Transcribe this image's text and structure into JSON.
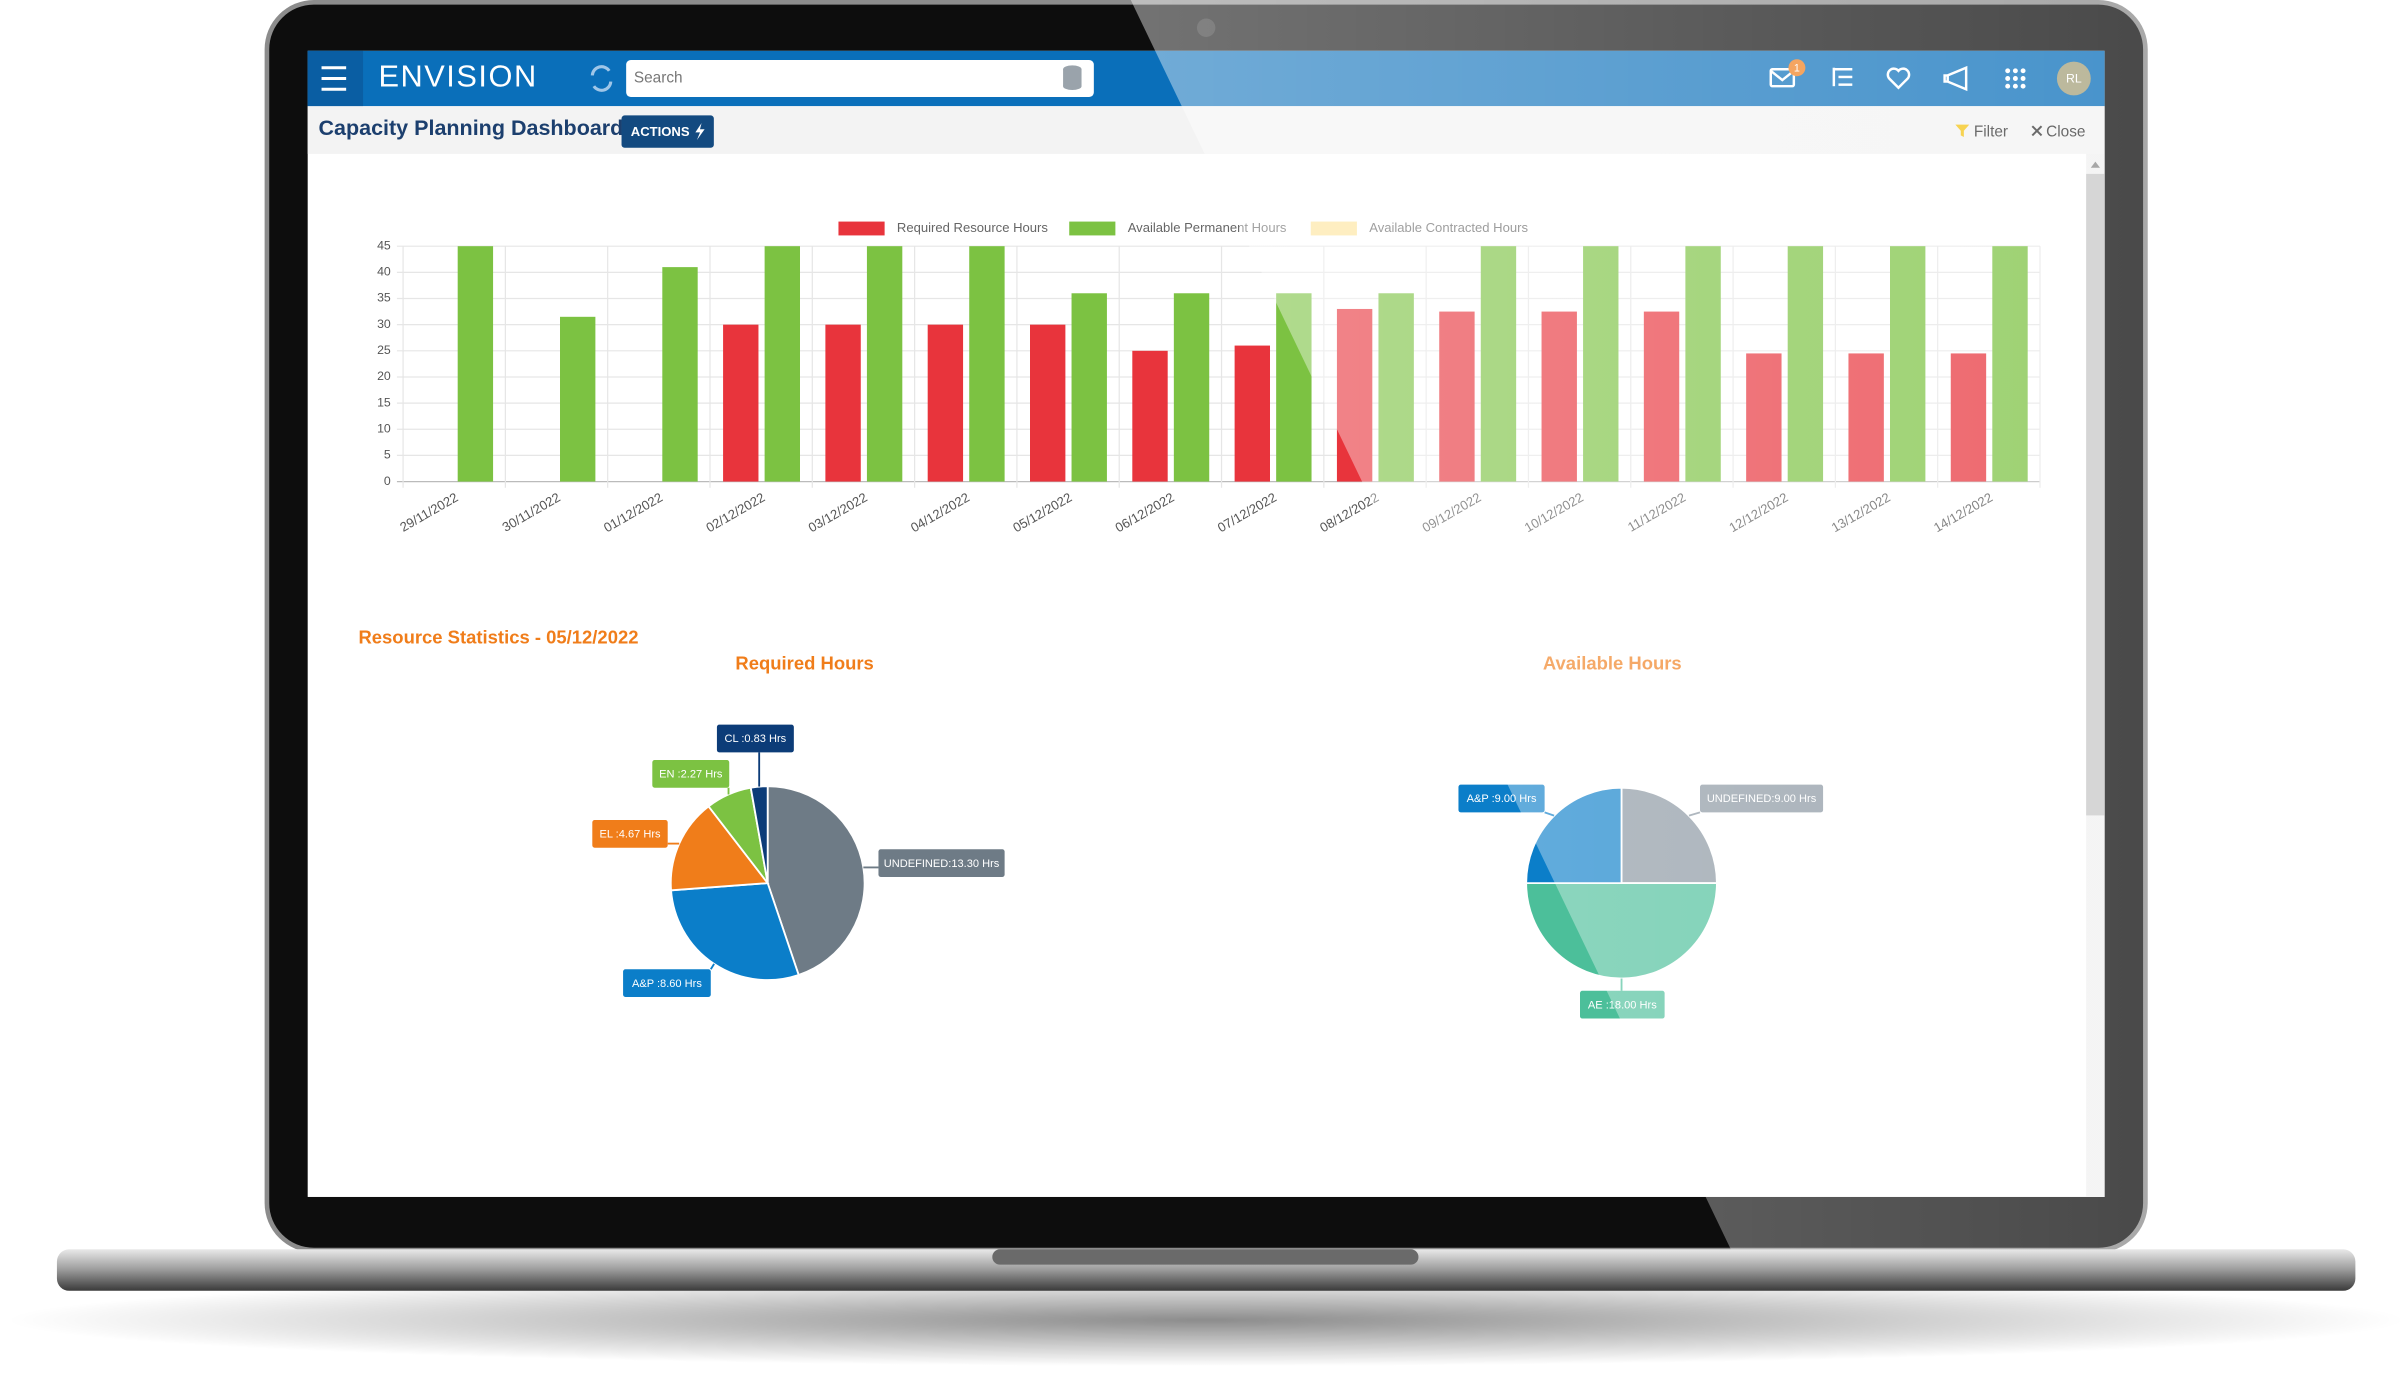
{
  "header": {
    "app_name": "ENVISION",
    "search_placeholder": "Search",
    "notification_count": 1,
    "user_initials": "RL"
  },
  "toolbar": {
    "title": "Capacity Planning Dashboard",
    "actions_button": "ACTIONS",
    "filter": "Filter",
    "close": "Close"
  },
  "section_title": "Resource Statistics - 05/12/2022",
  "chart_data": [
    {
      "type": "bar",
      "categories": [
        "29/11/2022",
        "30/11/2022",
        "01/12/2022",
        "02/12/2022",
        "03/12/2022",
        "04/12/2022",
        "05/12/2022",
        "06/12/2022",
        "07/12/2022",
        "08/12/2022",
        "09/12/2022",
        "10/12/2022",
        "11/12/2022",
        "12/12/2022",
        "13/12/2022",
        "14/12/2022"
      ],
      "series": [
        {
          "name": "Required Resource Hours",
          "color": "#e8343c",
          "stack": "required",
          "values": [
            0,
            0,
            0,
            30,
            30,
            30,
            30,
            25,
            26,
            33,
            32.5,
            32.5,
            32.5,
            24.5,
            24.5,
            24.5
          ]
        },
        {
          "name": "Available Permanent Hours",
          "color": "#7cc242",
          "stack": "available",
          "values": [
            45,
            31.5,
            41,
            45,
            45,
            45,
            36,
            36,
            36,
            36,
            45,
            45,
            45,
            45,
            45,
            45
          ]
        },
        {
          "name": "Available Contracted Hours",
          "color": "#fde49a",
          "stack": "available",
          "values": [
            0,
            0,
            0,
            0,
            0,
            0,
            0,
            0,
            0,
            0,
            0,
            0,
            0,
            0,
            0,
            0
          ]
        }
      ],
      "ylim": [
        0,
        45
      ],
      "yticks": [
        0,
        5,
        10,
        15,
        20,
        25,
        30,
        35,
        40,
        45
      ],
      "grid": true,
      "legend": "top"
    },
    {
      "type": "pie",
      "title": "Required Hours",
      "values": [
        13.3,
        8.6,
        4.67,
        2.27,
        0.83
      ],
      "value_labels": [
        "UNDEFINED:13.30 Hrs",
        "A&P :8.60 Hrs",
        "EL :4.67 Hrs",
        "EN :2.27 Hrs",
        "CL :0.83 Hrs"
      ],
      "colors": [
        "#6e7b86",
        "#0b7ec9",
        "#f07d1a",
        "#7cc242",
        "#0c3c78"
      ]
    },
    {
      "type": "pie",
      "title": "Available Hours",
      "values": [
        9,
        18,
        9
      ],
      "value_labels": [
        "UNDEFINED:9.00 Hrs",
        "AE :18.00 Hrs",
        "A&P :9.00 Hrs"
      ],
      "colors": [
        "#8a96a1",
        "#4cbf9a",
        "#0b7ec9"
      ]
    }
  ]
}
